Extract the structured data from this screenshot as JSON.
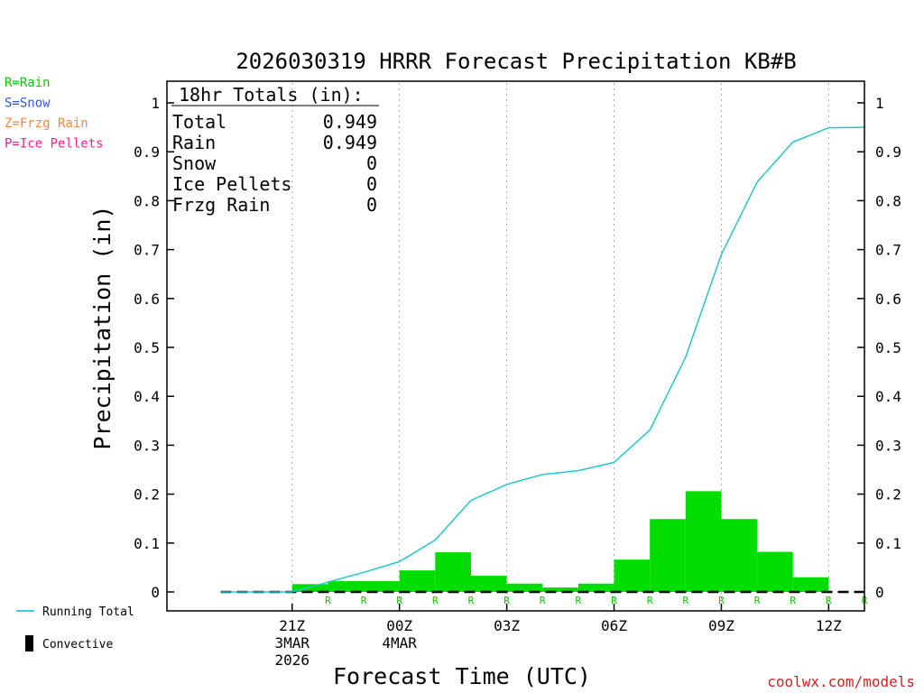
{
  "chart_data": {
    "type": "bar",
    "title": "2026030319 HRRR Forecast Precipitation KB#B",
    "xlabel": "Forecast Time (UTC)",
    "ylabel": "Precipitation (in)",
    "ylim": [
      0,
      1
    ],
    "yticks": [
      "0",
      "0.1",
      "0.2",
      "0.3",
      "0.4",
      "0.5",
      "0.6",
      "0.7",
      "0.8",
      "0.9",
      "1"
    ],
    "xlim_hours": [
      -1.5,
      18
    ],
    "xticks": [
      {
        "hour": 2,
        "lines": [
          "21Z",
          "3MAR",
          "2026"
        ]
      },
      {
        "hour": 5,
        "lines": [
          "00Z",
          "4MAR"
        ]
      },
      {
        "hour": 8,
        "lines": [
          "03Z"
        ]
      },
      {
        "hour": 11,
        "lines": [
          "06Z"
        ]
      },
      {
        "hour": 14,
        "lines": [
          "09Z"
        ]
      },
      {
        "hour": 17,
        "lines": [
          "12Z"
        ]
      }
    ],
    "hourly_precip": {
      "hours": [
        1,
        2,
        3,
        4,
        5,
        6,
        7,
        8,
        9,
        10,
        11,
        12,
        13,
        14,
        15,
        16,
        17,
        18
      ],
      "values": [
        0.0,
        0.0,
        0.016,
        0.022,
        0.022,
        0.044,
        0.081,
        0.033,
        0.017,
        0.009,
        0.017,
        0.066,
        0.149,
        0.206,
        0.149,
        0.082,
        0.03,
        0.0
      ]
    },
    "running_total": {
      "name": "Running Total",
      "hours": [
        0,
        1,
        2,
        3,
        4,
        5,
        6,
        7,
        8,
        9,
        10,
        11,
        12,
        13,
        14,
        15,
        16,
        17,
        18
      ],
      "values": [
        0.0,
        0.0,
        0.0,
        0.02,
        0.04,
        0.062,
        0.106,
        0.187,
        0.22,
        0.24,
        0.248,
        0.265,
        0.331,
        0.48,
        0.69,
        0.838,
        0.92,
        0.949,
        0.95
      ]
    },
    "ptype_labels": [
      "R",
      "R",
      "R",
      "R",
      "R",
      "R",
      "R",
      "R",
      "R",
      "R",
      "R",
      "R",
      "R",
      "R",
      "R",
      "R"
    ],
    "totals_box": {
      "header": "18hr Totals (in):",
      "rows": [
        {
          "label": "Total",
          "value": "0.949"
        },
        {
          "label": "Rain",
          "value": "0.949"
        },
        {
          "label": "Snow",
          "value": "0"
        },
        {
          "label": "Ice Pellets",
          "value": "0"
        },
        {
          "label": "Frzg Rain",
          "value": "0"
        }
      ]
    },
    "ptype_legend": [
      {
        "text": "R=Rain",
        "color": "#00cc00"
      },
      {
        "text": "S=Snow",
        "color": "#3355ee"
      },
      {
        "text": "Z=Frzg Rain",
        "color": "#ee8844"
      },
      {
        "text": "P=Ice Pellets",
        "color": "#ee2288"
      }
    ],
    "bottom_legend": [
      {
        "text": "Running Total",
        "color": "#00bbcc"
      },
      {
        "text": "Convective",
        "color": "#000000"
      }
    ],
    "watermark": "coolwx.com/models",
    "colors": {
      "bars": "#00dd00",
      "line": "#22c8c8",
      "watermark": "#cc2222",
      "grid": "#aaaaaa"
    }
  }
}
